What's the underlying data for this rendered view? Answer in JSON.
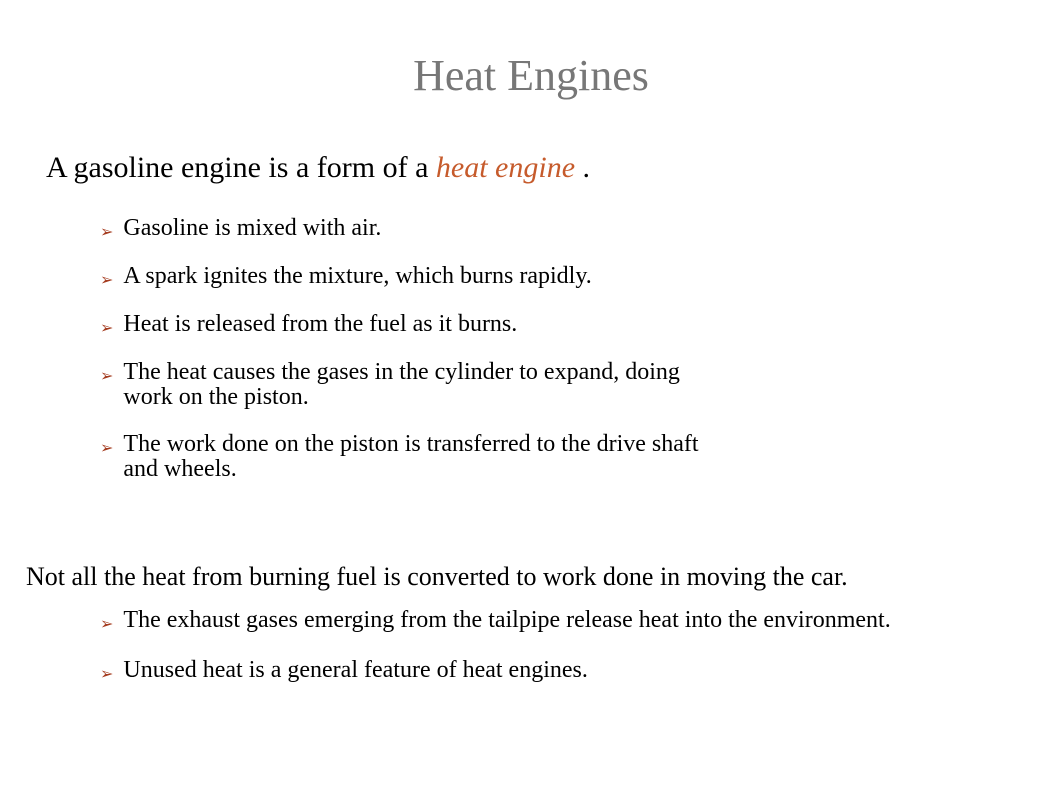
{
  "title": "Heat Engines",
  "colors": {
    "title": "#777777",
    "accent": "#c65b2c",
    "arrow": "#a43b1f",
    "text": "#000000",
    "background": "#ffffff"
  },
  "mainBullet": {
    "before": "A gasoline engine is a form of a ",
    "emphasis": "heat engine",
    "after": " ."
  },
  "subItems1": [
    "Gasoline is mixed with air.",
    "A spark ignites the mixture, which burns rapidly.",
    "Heat is released from the fuel as it burns.",
    "The heat causes the gases in the cylinder to expand, doing work on the piston.",
    "The work done on the piston is transferred to the drive shaft and wheels."
  ],
  "section2Lead": "Not all the heat from burning fuel is converted to work done in moving the car.",
  "subItems2": [
    "The exhaust  gases emerging from the tailpipe release heat into the environment.",
    "Unused heat is a general feature of heat engines."
  ],
  "glyphs": {
    "mainBullet": "",
    "subArrow": "➢"
  }
}
